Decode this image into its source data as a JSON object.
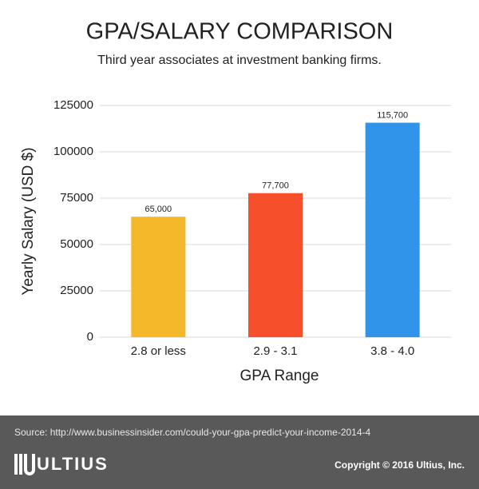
{
  "chart_data": {
    "type": "bar",
    "title": "GPA/SALARY COMPARISON",
    "subtitle": "Third year associates at investment banking firms.",
    "x_label": "GPA Range",
    "y_label": "Yearly Salary (USD $)",
    "categories": [
      "2.8 or less",
      "2.9 - 3.1",
      "3.8 - 4.0"
    ],
    "values": [
      65000,
      77700,
      115700
    ],
    "value_labels": [
      "65,000",
      "77,700",
      "115,700"
    ],
    "colors": [
      "#f5b82b",
      "#f5502b",
      "#2f94ea"
    ],
    "ylim": [
      0,
      125000
    ],
    "yticks": [
      0,
      25000,
      50000,
      75000,
      100000,
      125000
    ],
    "grid": true
  },
  "footer": {
    "source": "Source: http://www.businessinsider.com/could-your-gpa-predict-your-income-2014-4",
    "logo": "ULTIUS",
    "copyright": "Copyright © 2016 Ultius, Inc."
  }
}
